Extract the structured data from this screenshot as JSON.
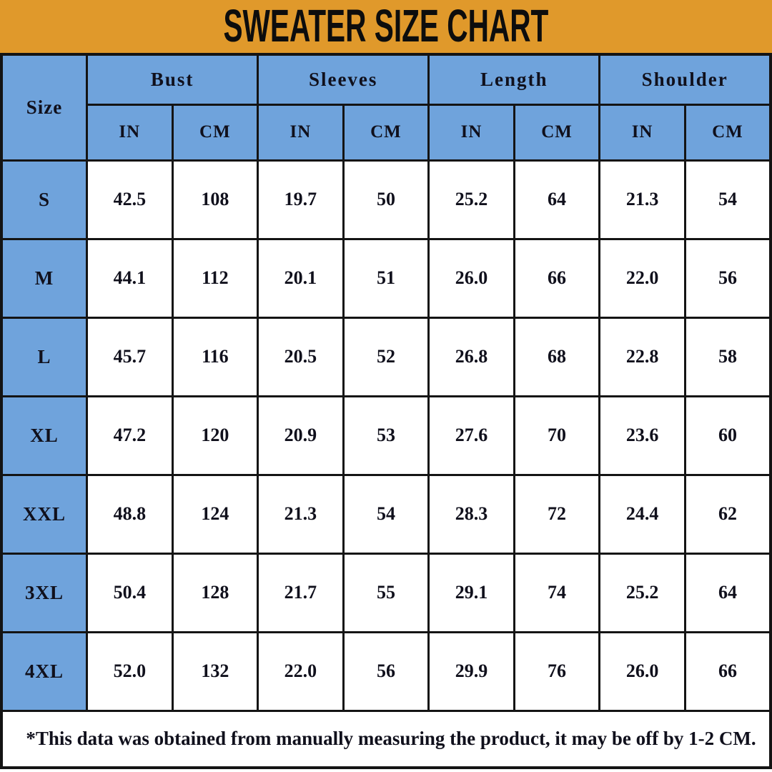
{
  "title": "SWEATER SIZE CHART",
  "colors": {
    "title_bar_bg": "#e0992b",
    "title_text": "#0d0d0d",
    "table_header_bg": "#6fa3dc",
    "cell_bg": "#ffffff",
    "border": "#141414",
    "text": "#10101c"
  },
  "table": {
    "size_label": "Size",
    "groups": [
      {
        "label": "Bust"
      },
      {
        "label": "Sleeves"
      },
      {
        "label": "Length"
      },
      {
        "label": "Shoulder"
      }
    ],
    "unit_in": "IN",
    "unit_cm": "CM",
    "rows": [
      {
        "size": "S",
        "values": [
          "42.5",
          "108",
          "19.7",
          "50",
          "25.2",
          "64",
          "21.3",
          "54"
        ]
      },
      {
        "size": "M",
        "values": [
          "44.1",
          "112",
          "20.1",
          "51",
          "26.0",
          "66",
          "22.0",
          "56"
        ]
      },
      {
        "size": "L",
        "values": [
          "45.7",
          "116",
          "20.5",
          "52",
          "26.8",
          "68",
          "22.8",
          "58"
        ]
      },
      {
        "size": "XL",
        "values": [
          "47.2",
          "120",
          "20.9",
          "53",
          "27.6",
          "70",
          "23.6",
          "60"
        ]
      },
      {
        "size": "XXL",
        "values": [
          "48.8",
          "124",
          "21.3",
          "54",
          "28.3",
          "72",
          "24.4",
          "62"
        ]
      },
      {
        "size": "3XL",
        "values": [
          "50.4",
          "128",
          "21.7",
          "55",
          "29.1",
          "74",
          "25.2",
          "64"
        ]
      },
      {
        "size": "4XL",
        "values": [
          "52.0",
          "132",
          "22.0",
          "56",
          "29.9",
          "76",
          "26.0",
          "66"
        ]
      }
    ],
    "note": "*This data was obtained from manually measuring the product, it may be off by 1-2 CM."
  },
  "chart_data": {
    "type": "table",
    "title": "SWEATER SIZE CHART",
    "column_groups": [
      "Bust",
      "Sleeves",
      "Length",
      "Shoulder"
    ],
    "columns": [
      "Size",
      "Bust IN",
      "Bust CM",
      "Sleeves IN",
      "Sleeves CM",
      "Length IN",
      "Length CM",
      "Shoulder IN",
      "Shoulder CM"
    ],
    "rows": [
      [
        "S",
        42.5,
        108,
        19.7,
        50,
        25.2,
        64,
        21.3,
        54
      ],
      [
        "M",
        44.1,
        112,
        20.1,
        51,
        26.0,
        66,
        22.0,
        56
      ],
      [
        "L",
        45.7,
        116,
        20.5,
        52,
        26.8,
        68,
        22.8,
        58
      ],
      [
        "XL",
        47.2,
        120,
        20.9,
        53,
        27.6,
        70,
        23.6,
        60
      ],
      [
        "XXL",
        48.8,
        124,
        21.3,
        54,
        28.3,
        72,
        24.4,
        62
      ],
      [
        "3XL",
        50.4,
        128,
        21.7,
        55,
        29.1,
        74,
        25.2,
        64
      ],
      [
        "4XL",
        52.0,
        132,
        22.0,
        56,
        29.9,
        76,
        26.0,
        66
      ]
    ],
    "note": "*This data was obtained from manually measuring the product, it may be off by 1-2 CM."
  }
}
